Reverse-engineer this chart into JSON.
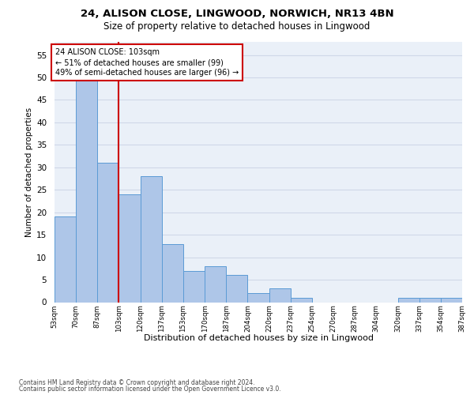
{
  "title1": "24, ALISON CLOSE, LINGWOOD, NORWICH, NR13 4BN",
  "title2": "Size of property relative to detached houses in Lingwood",
  "xlabel": "Distribution of detached houses by size in Lingwood",
  "ylabel": "Number of detached properties",
  "bar_values": [
    19,
    50,
    31,
    24,
    28,
    13,
    7,
    8,
    6,
    2,
    3,
    1,
    0,
    0,
    0,
    0,
    1,
    1,
    1
  ],
  "bin_labels": [
    "53sqm",
    "70sqm",
    "87sqm",
    "103sqm",
    "120sqm",
    "137sqm",
    "153sqm",
    "170sqm",
    "187sqm",
    "204sqm",
    "220sqm",
    "237sqm",
    "254sqm",
    "270sqm",
    "287sqm",
    "304sqm",
    "320sqm",
    "337sqm",
    "354sqm",
    "387sqm"
  ],
  "bar_color": "#aec6e8",
  "bar_edge_color": "#5b9bd5",
  "red_line_color": "#cc0000",
  "annotation_text": "24 ALISON CLOSE: 103sqm\n← 51% of detached houses are smaller (99)\n49% of semi-detached houses are larger (96) →",
  "annotation_box_color": "#ffffff",
  "annotation_box_edge_color": "#cc0000",
  "ylim": [
    0,
    58
  ],
  "yticks": [
    0,
    5,
    10,
    15,
    20,
    25,
    30,
    35,
    40,
    45,
    50,
    55
  ],
  "grid_color": "#d0d8e8",
  "background_color": "#eaf0f8",
  "footer1": "Contains HM Land Registry data © Crown copyright and database right 2024.",
  "footer2": "Contains public sector information licensed under the Open Government Licence v3.0."
}
